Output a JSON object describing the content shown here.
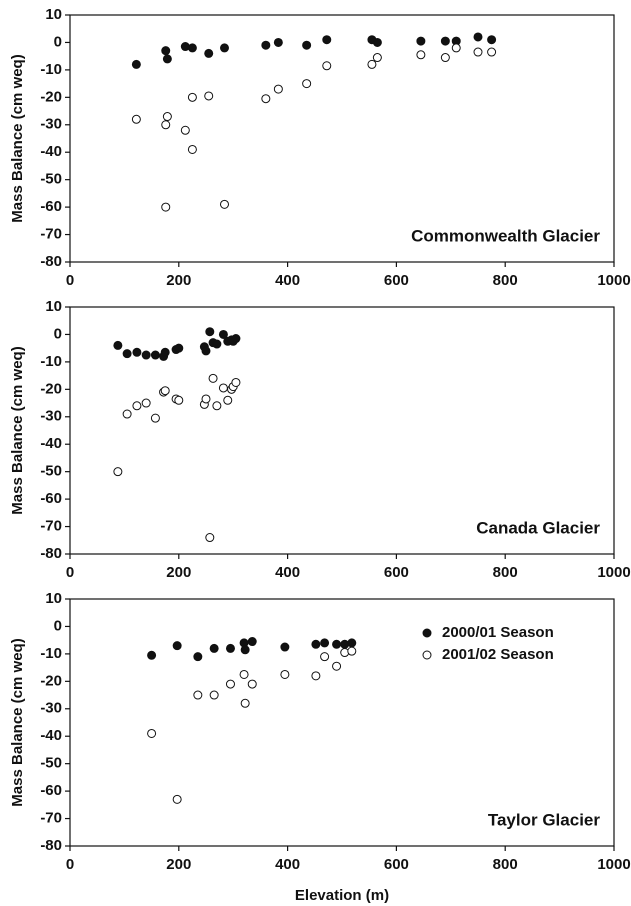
{
  "chart_data": [
    {
      "type": "scatter",
      "ylabel": "Mass Balance (cm weq)",
      "annotation": "Commonwealth Glacier",
      "xlim": [
        0,
        1000
      ],
      "xticks": [
        0,
        200,
        400,
        600,
        800,
        1000
      ],
      "ylim": [
        -80,
        10
      ],
      "yticks": [
        10,
        0,
        -10,
        -20,
        -30,
        -40,
        -50,
        -60,
        -70,
        -80
      ],
      "series": [
        {
          "color": "#111111",
          "filled": true,
          "x": [
            122,
            176,
            179,
            212,
            225,
            255,
            284,
            360,
            383,
            435,
            472,
            555,
            565,
            645,
            690,
            710,
            750,
            775
          ],
          "values": [
            -8,
            -3,
            -6,
            -1.5,
            -2,
            -4,
            -2,
            -1,
            0,
            -1,
            1,
            1,
            0,
            0.5,
            0.5,
            0.5,
            2,
            1
          ]
        },
        {
          "color": "#111111",
          "filled": false,
          "x": [
            122,
            176,
            179,
            212,
            225,
            225,
            255,
            176,
            284,
            360,
            383,
            435,
            472,
            555,
            565,
            645,
            690,
            710,
            750,
            775
          ],
          "values": [
            -28,
            -30,
            -27,
            -32,
            -39,
            -20,
            -19.5,
            -60,
            -59,
            -20.5,
            -17,
            -15,
            -8.5,
            -8,
            -5.5,
            -4.5,
            -5.5,
            -2,
            -3.5,
            -3.5
          ]
        }
      ]
    },
    {
      "type": "scatter",
      "ylabel": "Mass Balance (cm weq)",
      "annotation": "Canada Glacier",
      "xlim": [
        0,
        1000
      ],
      "xticks": [
        0,
        200,
        400,
        600,
        800,
        1000
      ],
      "ylim": [
        -80,
        10
      ],
      "yticks": [
        10,
        0,
        -10,
        -20,
        -30,
        -40,
        -50,
        -60,
        -70,
        -80
      ],
      "series": [
        {
          "color": "#111111",
          "filled": true,
          "x": [
            88,
            105,
            123,
            140,
            157,
            172,
            175,
            195,
            200,
            247,
            250,
            257,
            263,
            270,
            282,
            290,
            297,
            300,
            305
          ],
          "values": [
            -4,
            -7,
            -6.5,
            -7.5,
            -7.5,
            -8,
            -6.5,
            -5.5,
            -5,
            -4.5,
            -6,
            1,
            -3,
            -3.5,
            0,
            -2.5,
            -2,
            -2.5,
            -1.5
          ]
        },
        {
          "color": "#111111",
          "filled": false,
          "x": [
            88,
            105,
            123,
            140,
            157,
            172,
            175,
            195,
            200,
            247,
            250,
            257,
            263,
            270,
            282,
            290,
            297,
            300,
            305
          ],
          "values": [
            -50,
            -29,
            -26,
            -25,
            -30.5,
            -21,
            -20.5,
            -23.5,
            -24,
            -25.5,
            -23.5,
            -74,
            -16,
            -26,
            -19.5,
            -24,
            -20,
            -19,
            -17.5
          ]
        }
      ]
    },
    {
      "type": "scatter",
      "ylabel": "Mass Balance (cm weq)",
      "xlabel": "Elevation (m)",
      "annotation": "Taylor Glacier",
      "xlim": [
        0,
        1000
      ],
      "xticks": [
        0,
        200,
        400,
        600,
        800,
        1000
      ],
      "ylim": [
        -80,
        10
      ],
      "yticks": [
        10,
        0,
        -10,
        -20,
        -30,
        -40,
        -50,
        -60,
        -70,
        -80
      ],
      "legend": "upper right",
      "series": [
        {
          "name": "2000/01 Season",
          "color": "#111111",
          "filled": true,
          "x": [
            150,
            197,
            235,
            265,
            295,
            320,
            322,
            335,
            395,
            452,
            468,
            490,
            505,
            518
          ],
          "values": [
            -10.5,
            -7,
            -11,
            -8,
            -8,
            -6,
            -8.5,
            -5.5,
            -7.5,
            -6.5,
            -6,
            -6.5,
            -6.5,
            -6
          ]
        },
        {
          "name": "2001/02 Season",
          "color": "#111111",
          "filled": false,
          "x": [
            150,
            197,
            235,
            265,
            295,
            320,
            322,
            335,
            395,
            452,
            468,
            490,
            505,
            518
          ],
          "values": [
            -39,
            -63,
            -25,
            -25,
            -21,
            -17.5,
            -28,
            -21,
            -17.5,
            -18,
            -11,
            -14.5,
            -9.5,
            -9
          ]
        }
      ]
    }
  ]
}
